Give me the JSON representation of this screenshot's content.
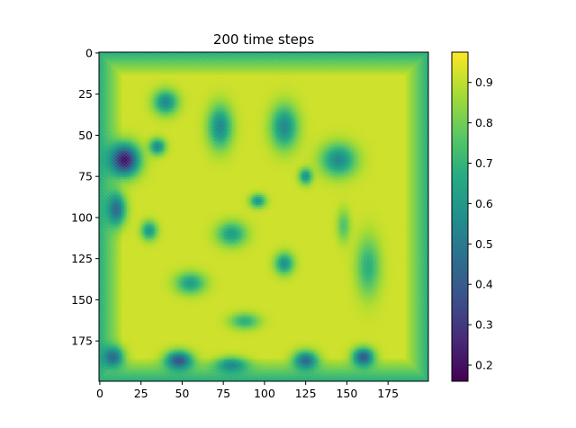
{
  "chart_data": {
    "type": "heatmap",
    "title": "200 time steps",
    "xlabel": "",
    "ylabel": "",
    "grid": false,
    "xlim": [
      0,
      199
    ],
    "ylim": [
      199,
      0
    ],
    "x_ticks": [
      0,
      25,
      50,
      75,
      100,
      125,
      150,
      175
    ],
    "y_ticks": [
      0,
      25,
      50,
      75,
      100,
      125,
      150,
      175
    ],
    "x_tick_labels": [
      "0",
      "25",
      "50",
      "75",
      "100",
      "125",
      "150",
      "175"
    ],
    "y_tick_labels": [
      "0",
      "25",
      "50",
      "75",
      "100",
      "125",
      "150",
      "175"
    ],
    "colormap": "viridis",
    "colorbar": {
      "min": 0.16,
      "max": 0.975,
      "ticks": [
        0.2,
        0.3,
        0.4,
        0.5,
        0.6,
        0.7,
        0.8,
        0.9
      ],
      "tick_labels": [
        "0.2",
        "0.3",
        "0.4",
        "0.5",
        "0.6",
        "0.7",
        "0.8",
        "0.9"
      ]
    },
    "background_value": 0.92,
    "border": {
      "width": 14,
      "value": 0.68
    },
    "regions": [
      {
        "x": 15,
        "y": 65,
        "rx": 11,
        "ry": 12,
        "value": 0.22
      },
      {
        "x": 10,
        "y": 95,
        "rx": 7,
        "ry": 12,
        "value": 0.45
      },
      {
        "x": 8,
        "y": 185,
        "rx": 8,
        "ry": 8,
        "value": 0.45
      },
      {
        "x": 48,
        "y": 187,
        "rx": 10,
        "ry": 7,
        "value": 0.38
      },
      {
        "x": 125,
        "y": 187,
        "rx": 9,
        "ry": 7,
        "value": 0.45
      },
      {
        "x": 160,
        "y": 185,
        "rx": 8,
        "ry": 7,
        "value": 0.4
      },
      {
        "x": 80,
        "y": 190,
        "rx": 12,
        "ry": 6,
        "value": 0.55
      },
      {
        "x": 40,
        "y": 30,
        "rx": 9,
        "ry": 9,
        "value": 0.55
      },
      {
        "x": 73,
        "y": 45,
        "rx": 9,
        "ry": 16,
        "value": 0.55
      },
      {
        "x": 112,
        "y": 45,
        "rx": 10,
        "ry": 16,
        "value": 0.55
      },
      {
        "x": 145,
        "y": 65,
        "rx": 13,
        "ry": 12,
        "value": 0.55
      },
      {
        "x": 35,
        "y": 57,
        "rx": 6,
        "ry": 6,
        "value": 0.55
      },
      {
        "x": 125,
        "y": 75,
        "rx": 5,
        "ry": 6,
        "value": 0.58
      },
      {
        "x": 96,
        "y": 90,
        "rx": 6,
        "ry": 5,
        "value": 0.6
      },
      {
        "x": 80,
        "y": 110,
        "rx": 11,
        "ry": 9,
        "value": 0.62
      },
      {
        "x": 112,
        "y": 128,
        "rx": 7,
        "ry": 8,
        "value": 0.58
      },
      {
        "x": 55,
        "y": 140,
        "rx": 11,
        "ry": 8,
        "value": 0.62
      },
      {
        "x": 88,
        "y": 163,
        "rx": 11,
        "ry": 6,
        "value": 0.68
      },
      {
        "x": 30,
        "y": 108,
        "rx": 6,
        "ry": 7,
        "value": 0.6
      },
      {
        "x": 163,
        "y": 130,
        "rx": 9,
        "ry": 22,
        "value": 0.68
      },
      {
        "x": 148,
        "y": 105,
        "rx": 5,
        "ry": 12,
        "value": 0.75
      }
    ]
  }
}
